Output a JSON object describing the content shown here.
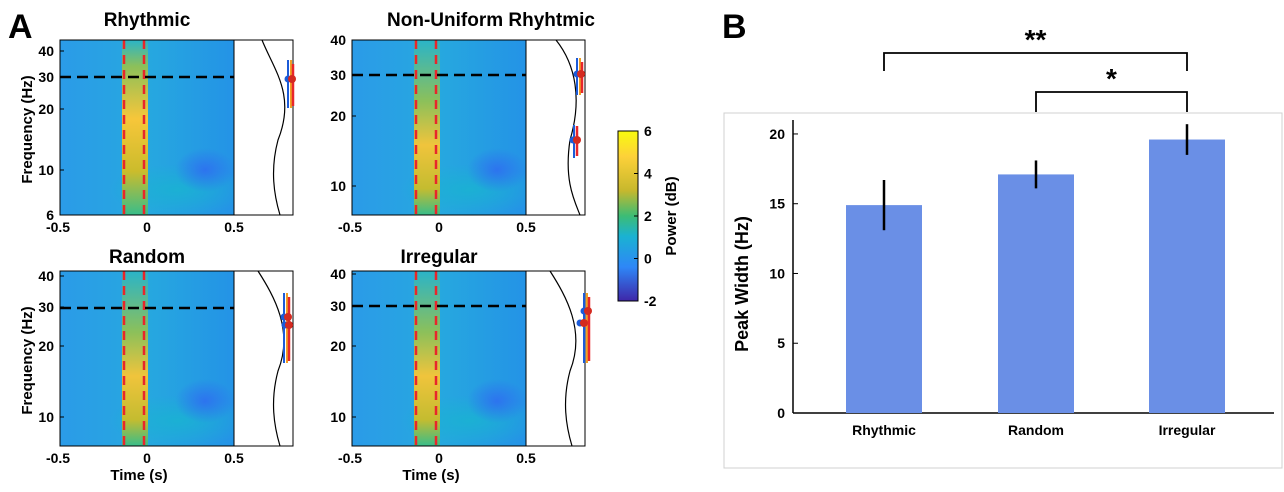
{
  "panels": {
    "a": "A",
    "b": "B"
  },
  "tf_panels": [
    {
      "title": "Rhythmic",
      "yticks": [
        "6",
        "10",
        "20",
        "30",
        "40"
      ],
      "xticks": [
        "-0.5",
        "0",
        "0.5"
      ],
      "ylabel": "Frequency (Hz)",
      "xlabel": ""
    },
    {
      "title": "Non-Uniform Rhyhtmic",
      "yticks": [
        "10",
        "20",
        "30",
        "40"
      ],
      "xticks": [
        "-0.5",
        "0",
        "0.5"
      ],
      "ylabel": "",
      "xlabel": ""
    },
    {
      "title": "Random",
      "yticks": [
        "10",
        "20",
        "30",
        "40"
      ],
      "xticks": [
        "-0.5",
        "0",
        "0.5"
      ],
      "ylabel": "Frequency (Hz)",
      "xlabel": "Time (s)"
    },
    {
      "title": "Irregular",
      "yticks": [
        "10",
        "20",
        "30",
        "40"
      ],
      "xticks": [
        "-0.5",
        "0",
        "0.5"
      ],
      "ylabel": "",
      "xlabel": "Time (s)"
    }
  ],
  "colorbar": {
    "label": "Power (dB)",
    "ticks": [
      "6",
      "4",
      "2",
      "0",
      "-2"
    ],
    "colors": [
      "#3e26a8",
      "#2e87f7",
      "#1ab2d2",
      "#3cbc75",
      "#c7b82d",
      "#fdd139",
      "#f9fb0e"
    ]
  },
  "chart_data": {
    "type": "bar",
    "categories": [
      "Rhythmic",
      "Random",
      "Irregular"
    ],
    "values": [
      14.9,
      17.1,
      19.6
    ],
    "errors": [
      1.8,
      1.0,
      1.1
    ],
    "ylabel": "Peak Width (Hz)",
    "xlabel": "",
    "ylim": [
      0,
      21
    ],
    "yticks": [
      "0",
      "5",
      "10",
      "15",
      "20"
    ],
    "bar_color": "#6a8fe6",
    "significance": [
      {
        "from": "Rhythmic",
        "to": "Irregular",
        "label": "**"
      },
      {
        "from": "Random",
        "to": "Irregular",
        "label": "*"
      }
    ]
  }
}
